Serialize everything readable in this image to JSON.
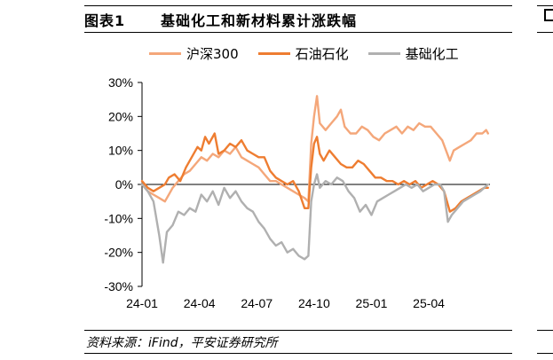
{
  "figure": {
    "number": "图表1",
    "title": "基础化工和新材料累计涨跌幅",
    "source": "资料来源：iFind，平安证券研究所"
  },
  "colors": {
    "hs300": "#f4a77a",
    "petro": "#ee7d31",
    "chem": "#b0b0b0"
  },
  "chart_data": {
    "type": "line",
    "title": "基础化工和新材料累计涨跌幅",
    "xlabel": "",
    "ylabel": "",
    "x_ticks": [
      "24-01",
      "24-04",
      "24-07",
      "24-10",
      "25-01",
      "25-04"
    ],
    "y_ticks": [
      "30%",
      "20%",
      "10%",
      "0%",
      "-10%",
      "-20%",
      "-30%"
    ],
    "ylim": [
      -30,
      30
    ],
    "x_range_months": [
      0,
      18.2
    ],
    "legend_position": "top",
    "series": [
      {
        "name": "沪深300",
        "color_key": "hs300",
        "points": [
          [
            0,
            0
          ],
          [
            0.3,
            -2
          ],
          [
            0.6,
            -3
          ],
          [
            0.9,
            -4
          ],
          [
            1.2,
            -5
          ],
          [
            1.4,
            -3
          ],
          [
            1.6,
            -1
          ],
          [
            1.9,
            1
          ],
          [
            2.2,
            3
          ],
          [
            2.5,
            4
          ],
          [
            2.8,
            6
          ],
          [
            3.1,
            8
          ],
          [
            3.4,
            7
          ],
          [
            3.7,
            9
          ],
          [
            4.0,
            8
          ],
          [
            4.3,
            10
          ],
          [
            4.6,
            9
          ],
          [
            4.9,
            11
          ],
          [
            5.2,
            8
          ],
          [
            5.5,
            7
          ],
          [
            5.8,
            6
          ],
          [
            6.1,
            5
          ],
          [
            6.4,
            3
          ],
          [
            6.7,
            1
          ],
          [
            7.0,
            1
          ],
          [
            7.3,
            0
          ],
          [
            7.6,
            -1
          ],
          [
            7.9,
            -2
          ],
          [
            8.2,
            -3
          ],
          [
            8.5,
            -4
          ],
          [
            8.7,
            -5
          ],
          [
            8.85,
            12
          ],
          [
            9.0,
            20
          ],
          [
            9.1,
            24
          ],
          [
            9.15,
            26
          ],
          [
            9.3,
            18
          ],
          [
            9.6,
            16
          ],
          [
            9.9,
            18
          ],
          [
            10.2,
            20
          ],
          [
            10.4,
            22
          ],
          [
            10.6,
            17
          ],
          [
            10.9,
            15
          ],
          [
            11.2,
            15
          ],
          [
            11.5,
            17
          ],
          [
            11.8,
            16
          ],
          [
            12.1,
            14
          ],
          [
            12.4,
            13
          ],
          [
            12.7,
            15
          ],
          [
            13.0,
            16
          ],
          [
            13.3,
            17
          ],
          [
            13.6,
            15
          ],
          [
            13.9,
            17
          ],
          [
            14.2,
            16
          ],
          [
            14.5,
            18
          ],
          [
            14.8,
            17
          ],
          [
            15.1,
            17
          ],
          [
            15.4,
            15
          ],
          [
            15.7,
            13
          ],
          [
            15.9,
            10
          ],
          [
            16.1,
            7
          ],
          [
            16.3,
            10
          ],
          [
            16.6,
            11
          ],
          [
            16.9,
            12
          ],
          [
            17.2,
            13
          ],
          [
            17.5,
            15
          ],
          [
            17.8,
            15
          ],
          [
            18.0,
            16
          ],
          [
            18.1,
            15
          ]
        ]
      },
      {
        "name": "石油石化",
        "color_key": "petro",
        "points": [
          [
            0,
            1
          ],
          [
            0.3,
            -1
          ],
          [
            0.6,
            -2
          ],
          [
            0.9,
            -1
          ],
          [
            1.2,
            0
          ],
          [
            1.4,
            2
          ],
          [
            1.7,
            3
          ],
          [
            2.0,
            1
          ],
          [
            2.3,
            5
          ],
          [
            2.6,
            8
          ],
          [
            2.9,
            11
          ],
          [
            3.1,
            10
          ],
          [
            3.3,
            14
          ],
          [
            3.5,
            12
          ],
          [
            3.8,
            15
          ],
          [
            4.0,
            9
          ],
          [
            4.3,
            10
          ],
          [
            4.6,
            12
          ],
          [
            4.9,
            11
          ],
          [
            5.2,
            13
          ],
          [
            5.5,
            10
          ],
          [
            5.8,
            9
          ],
          [
            6.1,
            8
          ],
          [
            6.4,
            8
          ],
          [
            6.7,
            4
          ],
          [
            7.0,
            2
          ],
          [
            7.3,
            1
          ],
          [
            7.6,
            0
          ],
          [
            7.9,
            1
          ],
          [
            8.2,
            -2
          ],
          [
            8.5,
            -7
          ],
          [
            8.7,
            -7
          ],
          [
            8.85,
            5
          ],
          [
            9.0,
            12
          ],
          [
            9.15,
            14
          ],
          [
            9.3,
            9
          ],
          [
            9.5,
            7
          ],
          [
            9.8,
            10
          ],
          [
            10.1,
            8
          ],
          [
            10.4,
            6
          ],
          [
            10.7,
            5
          ],
          [
            11.0,
            5
          ],
          [
            11.3,
            7
          ],
          [
            11.6,
            6
          ],
          [
            11.9,
            4
          ],
          [
            12.2,
            2
          ],
          [
            12.5,
            2
          ],
          [
            12.8,
            1
          ],
          [
            13.1,
            1
          ],
          [
            13.4,
            0
          ],
          [
            13.7,
            1
          ],
          [
            14.0,
            0
          ],
          [
            14.3,
            1
          ],
          [
            14.6,
            -1
          ],
          [
            14.9,
            0
          ],
          [
            15.2,
            1
          ],
          [
            15.5,
            0
          ],
          [
            15.8,
            -2
          ],
          [
            16.1,
            -8
          ],
          [
            16.4,
            -7
          ],
          [
            16.7,
            -5
          ],
          [
            17.0,
            -4
          ],
          [
            17.3,
            -3
          ],
          [
            17.6,
            -2
          ],
          [
            17.9,
            -1
          ],
          [
            18.1,
            -1
          ]
        ]
      },
      {
        "name": "基础化工",
        "color_key": "chem",
        "points": [
          [
            0,
            0
          ],
          [
            0.3,
            -2
          ],
          [
            0.6,
            -5
          ],
          [
            0.9,
            -15
          ],
          [
            1.1,
            -23
          ],
          [
            1.3,
            -14
          ],
          [
            1.6,
            -12
          ],
          [
            1.9,
            -8
          ],
          [
            2.2,
            -9
          ],
          [
            2.5,
            -7
          ],
          [
            2.8,
            -8
          ],
          [
            3.1,
            -3
          ],
          [
            3.4,
            -5
          ],
          [
            3.7,
            -2
          ],
          [
            4.0,
            -6
          ],
          [
            4.3,
            -1
          ],
          [
            4.6,
            -4
          ],
          [
            4.9,
            -2
          ],
          [
            5.2,
            -5
          ],
          [
            5.5,
            -7
          ],
          [
            5.8,
            -8
          ],
          [
            6.1,
            -11
          ],
          [
            6.4,
            -13
          ],
          [
            6.7,
            -16
          ],
          [
            7.0,
            -18
          ],
          [
            7.3,
            -17
          ],
          [
            7.6,
            -20
          ],
          [
            7.9,
            -19
          ],
          [
            8.2,
            -21
          ],
          [
            8.5,
            -22
          ],
          [
            8.7,
            -21
          ],
          [
            8.85,
            -5
          ],
          [
            9.0,
            0
          ],
          [
            9.15,
            3
          ],
          [
            9.3,
            -1
          ],
          [
            9.6,
            1
          ],
          [
            9.9,
            0
          ],
          [
            10.2,
            2
          ],
          [
            10.5,
            1
          ],
          [
            10.8,
            -2
          ],
          [
            11.1,
            -4
          ],
          [
            11.4,
            -8
          ],
          [
            11.7,
            -6
          ],
          [
            12.0,
            -9
          ],
          [
            12.3,
            -5
          ],
          [
            12.6,
            -4
          ],
          [
            12.9,
            -3
          ],
          [
            13.2,
            -2
          ],
          [
            13.5,
            -1
          ],
          [
            13.8,
            0
          ],
          [
            14.1,
            -1
          ],
          [
            14.4,
            0
          ],
          [
            14.7,
            -2
          ],
          [
            15.0,
            -1
          ],
          [
            15.3,
            0
          ],
          [
            15.6,
            0
          ],
          [
            15.8,
            -2
          ],
          [
            16.0,
            -11
          ],
          [
            16.2,
            -9
          ],
          [
            16.5,
            -7
          ],
          [
            16.8,
            -5
          ],
          [
            17.1,
            -4
          ],
          [
            17.4,
            -3
          ],
          [
            17.7,
            -2
          ],
          [
            17.9,
            -1
          ],
          [
            18.1,
            0
          ]
        ]
      }
    ]
  }
}
